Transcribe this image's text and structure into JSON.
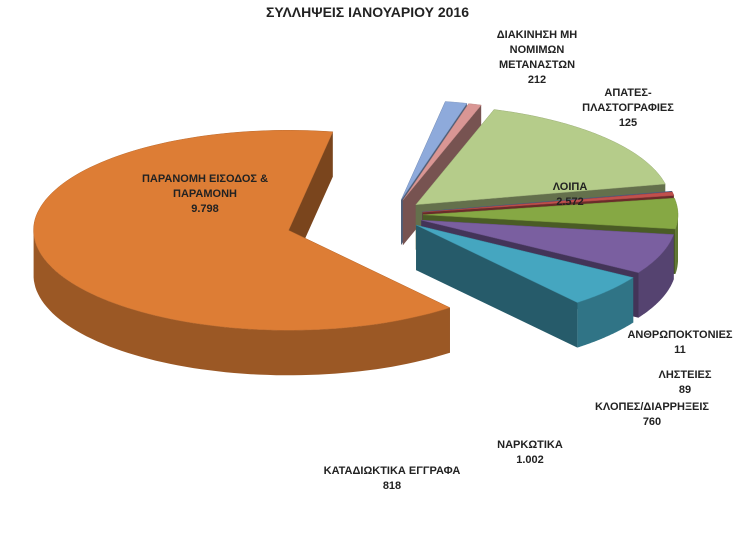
{
  "chart_data": {
    "type": "pie3d",
    "title": "ΣΥΛΛΗΨΕΙΣ ΙΑΝΟΥΑΡΙΟΥ 2016",
    "categories": [
      "ΔΙΑΚΙΝΗΣΗ ΜΗ ΝΟΜΙΜΩΝ ΜΕΤΑΝΑΣΤΩΝ",
      "ΑΠΑΤΕΣ-ΠΛΑΣΤΟΓΡΑΦΙΕΣ",
      "ΛΟΙΠΑ",
      "ΑΝΘΡΩΠΟΚΤΟΝΙΕΣ",
      "ΛΗΣΤΕΙΕΣ",
      "ΚΛΟΠΕΣ/ΔΙΑΡΡΗΞΕΙΣ",
      "ΝΑΡΚΩΤΙΚΑ",
      "ΚΑΤΑΔΙΩΚΤΙΚΑ ΕΓΓΡΑΦΑ",
      "ΠΑΡΑΝΟΜΗ ΕΙΣΟΔΟΣ & ΠΑΡΑΜΟΝΗ"
    ],
    "values": [
      212,
      125,
      2572,
      11,
      89,
      760,
      1002,
      818,
      9798
    ],
    "value_labels": [
      "212",
      "125",
      "2.572",
      "11",
      "89",
      "760",
      "1.002",
      "818",
      "9.798"
    ],
    "colors": [
      "#8eaadb",
      "#d99694",
      "#b5cc8a",
      "#4f6f9e",
      "#c0504d",
      "#86a844",
      "#7a5fa0",
      "#45a6c0",
      "#dd7d35"
    ]
  }
}
